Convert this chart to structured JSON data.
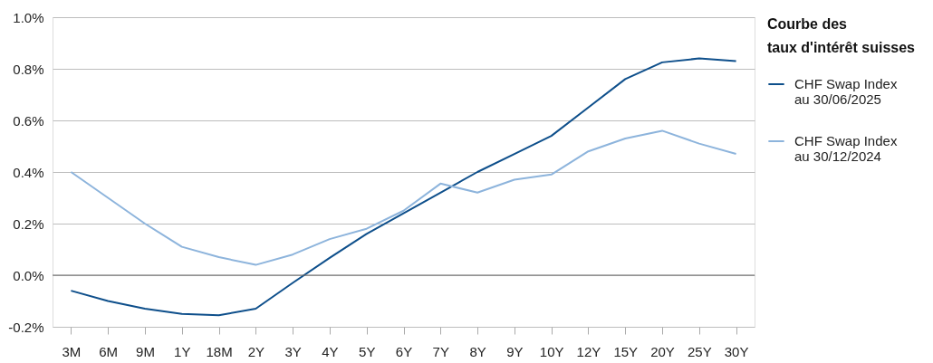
{
  "chart_data": {
    "type": "line",
    "legend_title": "Courbe des taux d'intérêt suisses",
    "categories": [
      "3M",
      "6M",
      "9M",
      "1Y",
      "18M",
      "2Y",
      "3Y",
      "4Y",
      "5Y",
      "6Y",
      "7Y",
      "8Y",
      "9Y",
      "10Y",
      "12Y",
      "15Y",
      "20Y",
      "25Y",
      "30Y"
    ],
    "series": [
      {
        "name": "CHF Swap Index au 30/06/2025",
        "color": "#0e4f8b",
        "values": [
          -0.06,
          -0.1,
          -0.13,
          -0.15,
          -0.155,
          -0.13,
          -0.03,
          0.067,
          0.16,
          0.24,
          0.32,
          0.4,
          0.47,
          0.54,
          0.65,
          0.76,
          0.825,
          0.84,
          0.83
        ]
      },
      {
        "name": "CHF Swap Index au 30/12/2024",
        "color": "#8db4dc",
        "values": [
          0.4,
          0.3,
          0.2,
          0.11,
          0.07,
          0.04,
          0.08,
          0.14,
          0.18,
          0.25,
          0.355,
          0.32,
          0.37,
          0.39,
          0.48,
          0.53,
          0.56,
          0.51,
          0.47
        ]
      }
    ],
    "ylim": [
      -0.2,
      1.0
    ],
    "yticks": [
      {
        "value": -0.2,
        "label": "-0.2%"
      },
      {
        "value": 0.0,
        "label": "0.0%"
      },
      {
        "value": 0.2,
        "label": "0.2%"
      },
      {
        "value": 0.4,
        "label": "0.4%"
      },
      {
        "value": 0.6,
        "label": "0.6%"
      },
      {
        "value": 0.8,
        "label": "0.8%"
      },
      {
        "value": 1.0,
        "label": "1.0%"
      }
    ],
    "ref_lines": [
      {
        "axis": "y",
        "value": 0.0,
        "color": "#6b6b6b"
      }
    ],
    "grid": "y",
    "legend": "right",
    "marker": "none",
    "line_style": "solid"
  }
}
